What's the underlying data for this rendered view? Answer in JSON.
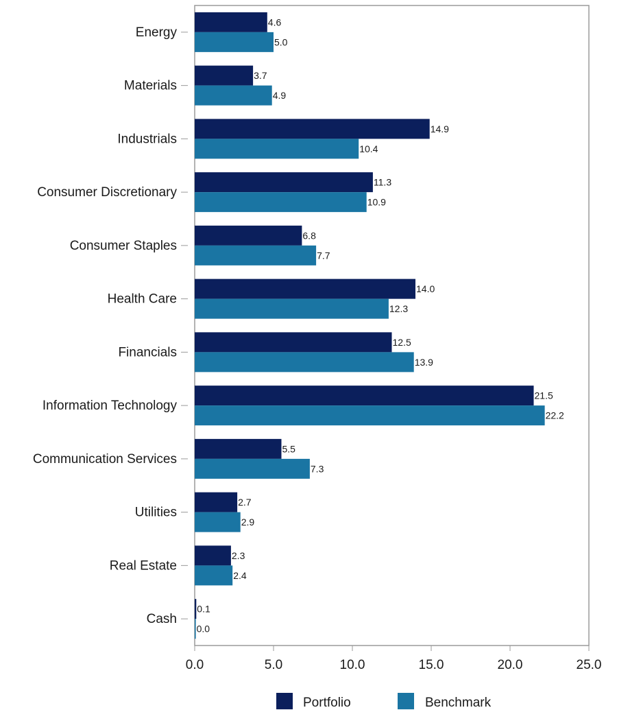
{
  "chart_data": {
    "type": "bar",
    "orientation": "horizontal",
    "categories": [
      "Energy",
      "Materials",
      "Industrials",
      "Consumer Discretionary",
      "Consumer Staples",
      "Health Care",
      "Financials",
      "Information Technology",
      "Communication Services",
      "Utilities",
      "Real Estate",
      "Cash"
    ],
    "series": [
      {
        "name": "Portfolio",
        "color": "#0b1f5c",
        "values": [
          4.6,
          3.7,
          14.9,
          11.3,
          6.8,
          14.0,
          12.5,
          21.5,
          5.5,
          2.7,
          2.3,
          0.1
        ],
        "labels": [
          "4.6",
          "3.7",
          "14.9",
          "11.3",
          "6.8",
          "14.0",
          "12.5",
          "21.5",
          "5.5",
          "2.7",
          "2.3",
          "0.1"
        ]
      },
      {
        "name": "Benchmark",
        "color": "#1a75a3",
        "values": [
          5.0,
          4.9,
          10.4,
          10.9,
          7.7,
          12.3,
          13.9,
          22.2,
          7.3,
          2.9,
          2.4,
          0.0
        ],
        "labels": [
          "5.0",
          "4.9",
          "10.4",
          "10.9",
          "7.7",
          "12.3",
          "13.9",
          "22.2",
          "7.3",
          "2.9",
          "2.4",
          "0.0"
        ]
      }
    ],
    "xlim": [
      0,
      25
    ],
    "xticks": [
      "0.0",
      "5.0",
      "10.0",
      "15.0",
      "20.0",
      "25.0"
    ],
    "xlabel": "",
    "ylabel": "",
    "title": "",
    "grid": false,
    "legend_position": "bottom-center"
  }
}
